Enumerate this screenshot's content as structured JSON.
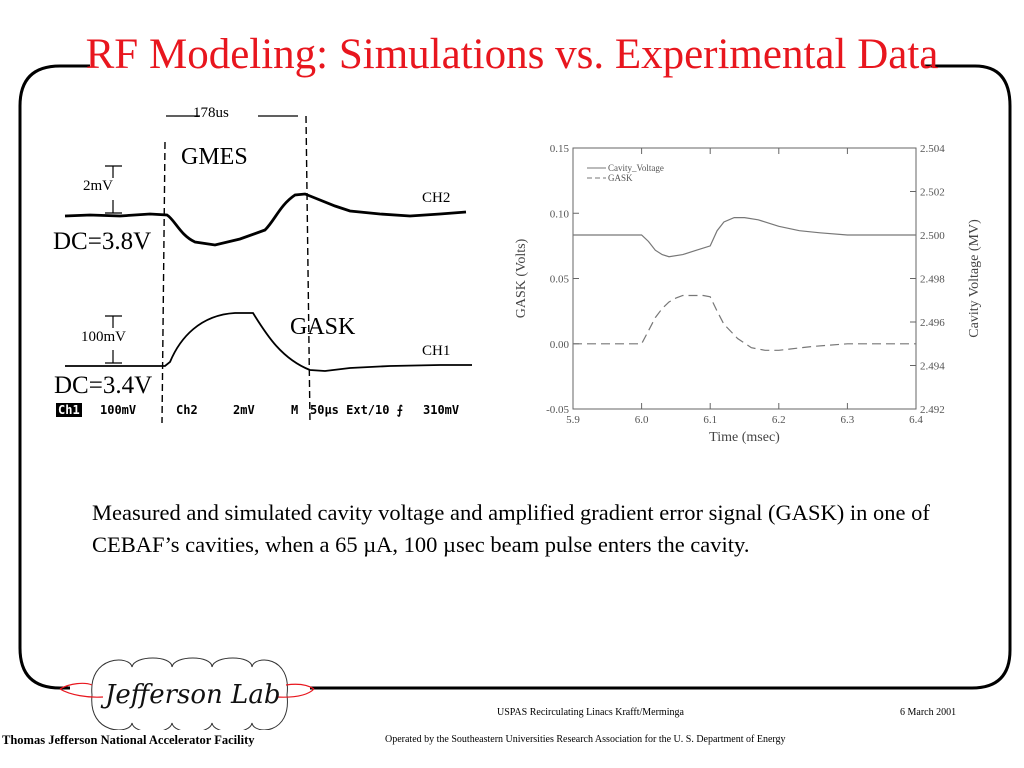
{
  "title": "RF Modeling: Simulations vs. Experimental Data",
  "scope": {
    "span_label": "178us",
    "gmes_label": "GMES",
    "gask_label": "GASK",
    "ch2_scale": "2mV",
    "ch1_scale": "100mV",
    "ch2_dc": "DC=3.8V",
    "ch1_dc": "DC=3.4V",
    "ch2_label": "CH2",
    "ch1_label": "CH1",
    "status": {
      "ch1_badge": "Ch1",
      "ch1_val": "100mV",
      "ch2": "Ch2",
      "ch2_val": "2mV",
      "m": "M",
      "timebase": "50µs Ext/10 ⨍",
      "trigger": "310mV"
    }
  },
  "chart_data": {
    "type": "line",
    "xlabel": "Time (msec)",
    "ylabel": "GASK (Volts)",
    "y2label": "Cavity Voltage (MV)",
    "xlim": [
      5.9,
      6.4
    ],
    "ylim": [
      -0.05,
      0.15
    ],
    "y2lim": [
      2.492,
      2.504
    ],
    "xticks": [
      "5.9",
      "6.0",
      "6.1",
      "6.2",
      "6.3",
      "6.4"
    ],
    "yticks": [
      "-0.05",
      "0.00",
      "0.05",
      "0.10",
      "0.15"
    ],
    "y2ticks": [
      "2.492",
      "2.494",
      "2.496",
      "2.498",
      "2.500",
      "2.502",
      "2.504"
    ],
    "legend": [
      "Cavity_Voltage",
      "GASK"
    ],
    "legend_position": "top-left",
    "series": [
      {
        "name": "Cavity_Voltage",
        "axis": "right",
        "style": "solid",
        "x": [
          5.9,
          6.0,
          6.01,
          6.02,
          6.03,
          6.04,
          6.06,
          6.08,
          6.1,
          6.11,
          6.12,
          6.135,
          6.15,
          6.17,
          6.2,
          6.23,
          6.26,
          6.3,
          6.35,
          6.4
        ],
        "y": [
          2.5,
          2.5,
          2.4997,
          2.4993,
          2.4991,
          2.499,
          2.4991,
          2.4993,
          2.4995,
          2.5002,
          2.5006,
          2.5008,
          2.5008,
          2.5007,
          2.5004,
          2.5002,
          2.5001,
          2.5,
          2.5,
          2.5
        ]
      },
      {
        "name": "GASK",
        "axis": "left",
        "style": "dashed",
        "x": [
          5.9,
          6.0,
          6.01,
          6.02,
          6.03,
          6.04,
          6.05,
          6.06,
          6.07,
          6.09,
          6.1,
          6.11,
          6.12,
          6.14,
          6.16,
          6.18,
          6.2,
          6.25,
          6.3,
          6.35,
          6.4
        ],
        "y": [
          0,
          0,
          0.01,
          0.02,
          0.027,
          0.032,
          0.035,
          0.037,
          0.037,
          0.037,
          0.036,
          0.025,
          0.015,
          0.004,
          -0.003,
          -0.005,
          -0.005,
          -0.002,
          0,
          0,
          0
        ]
      }
    ]
  },
  "caption": "Measured and simulated cavity voltage and amplified gradient error signal (GASK) in one of CEBAF’s cavities, when a 65 µA, 100 µsec beam pulse enters the cavity.",
  "footer": {
    "logo_text": "Jefferson Lab",
    "facility": "Thomas Jefferson National Accelerator Facility",
    "course": "USPAS Recirculating Linacs Krafft/Merminga",
    "date": "6 March  2001",
    "operated_by": "Operated by the Southeastern Universities Research Association for the U. S. Department of Energy"
  },
  "colors": {
    "title": "#e8161e",
    "logo_accent": "#e8161e"
  }
}
